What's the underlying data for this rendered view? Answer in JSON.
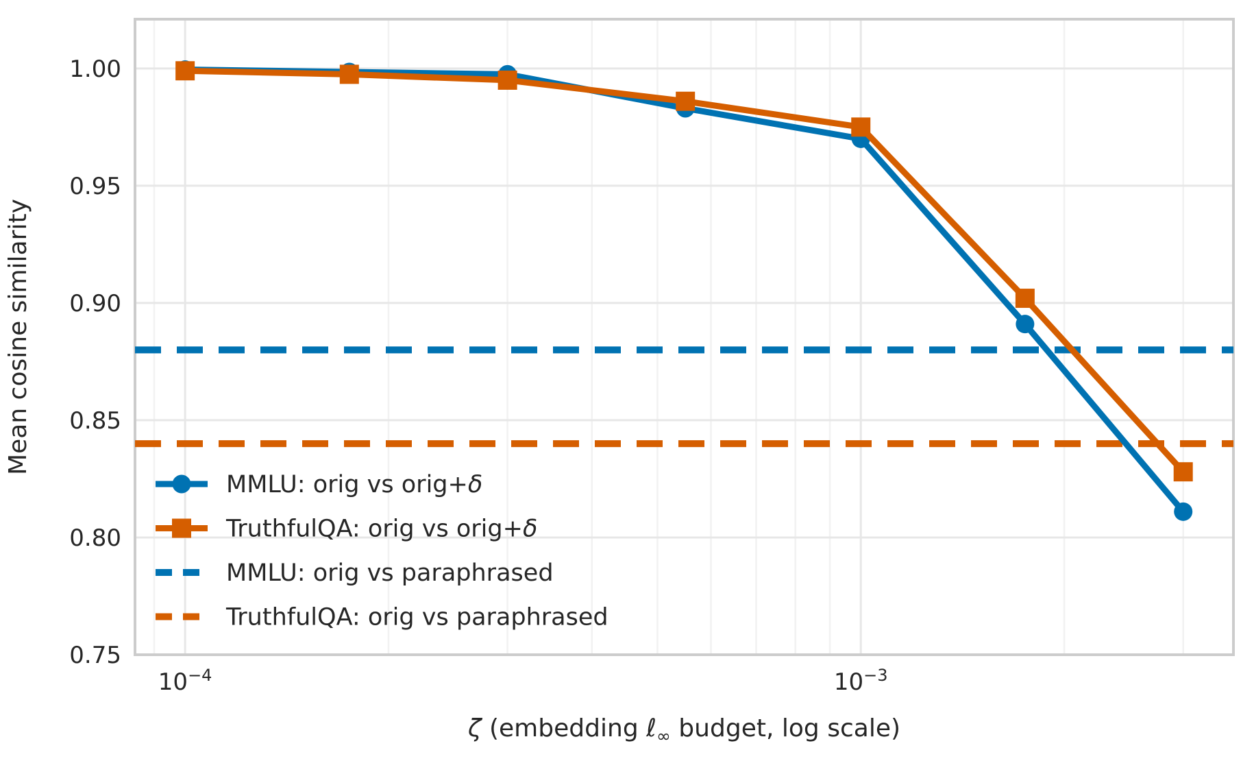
{
  "figure": {
    "background": "#ffffff"
  },
  "colors": {
    "text": "#262626",
    "grid_major": "#e7e7e7",
    "grid_minor": "#f2f2f2",
    "spine": "#cccccc",
    "accent_blue": "#0072B2",
    "accent_orange": "#D55E00"
  },
  "chart_data": {
    "type": "line",
    "title": "",
    "xlabel": "ζ (embedding ℓ∞ budget, log scale)",
    "ylabel": "Mean cosine similarity",
    "x_scale": "log",
    "grid": true,
    "xlim": [
      8.43e-05,
      0.00356
    ],
    "ylim": [
      0.75,
      1.021
    ],
    "x": [
      0.0001,
      0.000175,
      0.0003,
      0.00055,
      0.001,
      0.00175,
      0.003
    ],
    "series": [
      {
        "name": "MMLU: orig vs orig+δ",
        "color": "#0072B2",
        "marker": "circle",
        "line_style": "solid",
        "values": [
          0.9995,
          0.9985,
          0.9975,
          0.983,
          0.97,
          0.891,
          0.811
        ]
      },
      {
        "name": "TruthfulQA: orig vs orig+δ",
        "color": "#D55E00",
        "marker": "square",
        "line_style": "solid",
        "values": [
          0.999,
          0.9975,
          0.995,
          0.986,
          0.975,
          0.902,
          0.828
        ]
      }
    ],
    "baselines": [
      {
        "name": "MMLU: orig vs paraphrased",
        "color": "#0072B2",
        "line_style": "dashed",
        "value": 0.88
      },
      {
        "name": "TruthfulQA: orig vs paraphrased",
        "color": "#D55E00",
        "line_style": "dashed",
        "value": 0.84
      }
    ],
    "y_ticks": [
      {
        "value": 0.75,
        "label": "0.75"
      },
      {
        "value": 0.8,
        "label": "0.80"
      },
      {
        "value": 0.85,
        "label": "0.85"
      },
      {
        "value": 0.9,
        "label": "0.90"
      },
      {
        "value": 0.95,
        "label": "0.95"
      },
      {
        "value": 1.0,
        "label": "1.00"
      }
    ],
    "x_major_ticks": [
      {
        "value": 0.0001,
        "base": "10",
        "exp": "−4"
      },
      {
        "value": 0.001,
        "base": "10",
        "exp": "−3"
      }
    ],
    "x_minor_ticks": [
      9e-05,
      0.0002,
      0.0003,
      0.0004,
      0.0005,
      0.0006,
      0.0007,
      0.0008,
      0.0009,
      0.002,
      0.003
    ],
    "legend": {
      "position": "lower left",
      "frame": false,
      "entries": [
        "MMLU: orig vs orig+δ",
        "TruthfulQA: orig vs orig+δ",
        "MMLU: orig vs paraphrased",
        "TruthfulQA: orig vs paraphrased"
      ]
    }
  }
}
